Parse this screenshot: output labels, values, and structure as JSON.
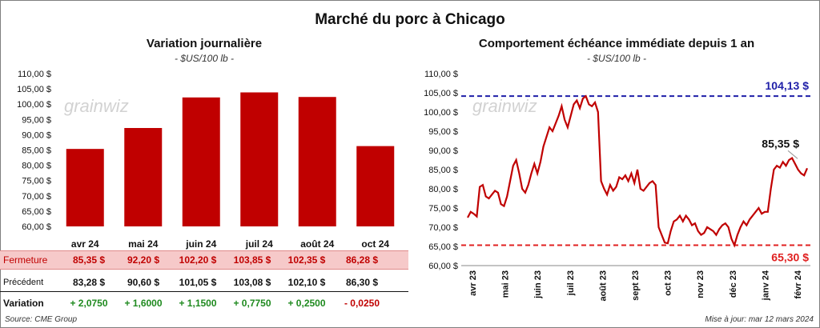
{
  "title": "Marché du porc à Chicago",
  "left_chart": {
    "subtitle": "Variation journalière",
    "unit": "- $US/100 lb -"
  },
  "right_chart": {
    "subtitle": "Comportement échéance immédiate depuis 1 an",
    "unit": "- $US/100 lb -"
  },
  "watermark": "grainwiz",
  "table": {
    "close_label": "Fermeture",
    "prev_label": "Précédent",
    "var_label": "Variation",
    "close": [
      "85,35  $",
      "92,20  $",
      "102,20  $",
      "103,85  $",
      "102,35  $",
      "86,28  $"
    ],
    "prev": [
      "83,28  $",
      "90,60  $",
      "101,05  $",
      "103,08  $",
      "102,10  $",
      "86,30  $"
    ],
    "var": [
      "+ 2,0750",
      "+ 1,6000",
      "+ 1,1500",
      "+ 0,7750",
      "+ 0,2500",
      "- 0,0250"
    ],
    "var_sign": [
      "pos",
      "pos",
      "pos",
      "pos",
      "pos",
      "neg"
    ]
  },
  "footer": {
    "source": "Source: CME Group",
    "updated": "Mise à jour: mar 12 mars 2024"
  },
  "colors": {
    "bar": "#c00000",
    "line": "#c00000",
    "high": "#1f1fa8",
    "low": "#e02020"
  },
  "chart_data": [
    {
      "type": "bar",
      "categories": [
        "avr 24",
        "mai 24",
        "juin 24",
        "juil 24",
        "août 24",
        "oct 24"
      ],
      "values": [
        85.35,
        92.2,
        102.2,
        103.85,
        102.35,
        86.28
      ],
      "ylim": [
        60,
        110
      ],
      "yticks": [
        "60,00 $",
        "65,00 $",
        "70,00 $",
        "75,00 $",
        "80,00 $",
        "85,00 $",
        "90,00 $",
        "95,00 $",
        "100,00 $",
        "105,00 $",
        "110,00 $"
      ]
    },
    {
      "type": "line",
      "ylim": [
        60,
        110
      ],
      "yticks": [
        "60,00 $",
        "65,00 $",
        "70,00 $",
        "75,00 $",
        "80,00 $",
        "85,00 $",
        "90,00 $",
        "95,00 $",
        "100,00 $",
        "105,00 $",
        "110,00 $"
      ],
      "xticks": [
        "avr 23",
        "mai 23",
        "juin 23",
        "juil 23",
        "août 23",
        "sept 23",
        "oct 23",
        "nov 23",
        "déc 23",
        "janv 24",
        "févr 24"
      ],
      "high": {
        "value": 104.13,
        "label": "104,13 $"
      },
      "low": {
        "value": 65.3,
        "label": "65,30 $"
      },
      "last_label": "85,35 $",
      "values": [
        72.5,
        74.0,
        73.5,
        72.8,
        80.5,
        81.0,
        78.0,
        77.5,
        78.5,
        79.5,
        79.0,
        76.0,
        75.5,
        78.0,
        82.0,
        86.0,
        87.5,
        84.0,
        80.0,
        79.0,
        81.0,
        84.0,
        86.5,
        84.0,
        87.0,
        91.0,
        93.5,
        96.0,
        95.0,
        97.0,
        99.0,
        101.5,
        98.0,
        96.0,
        99.0,
        102.0,
        103.0,
        101.0,
        103.5,
        104.13,
        102.0,
        101.5,
        102.5,
        100.0,
        82.0,
        80.0,
        78.5,
        81.0,
        79.5,
        80.5,
        83.0,
        82.5,
        83.5,
        82.0,
        84.0,
        81.5,
        85.0,
        80.0,
        79.5,
        80.5,
        81.5,
        82.0,
        81.0,
        70.0,
        68.0,
        66.0,
        65.8,
        69.0,
        71.5,
        72.0,
        73.0,
        71.5,
        73.0,
        72.0,
        70.5,
        71.0,
        69.0,
        68.0,
        68.5,
        70.0,
        69.5,
        69.0,
        68.0,
        69.5,
        70.5,
        71.0,
        70.0,
        67.0,
        65.3,
        68.0,
        70.0,
        71.5,
        70.5,
        72.0,
        73.0,
        74.0,
        75.0,
        73.5,
        74.0,
        74.0,
        80.0,
        85.0,
        86.0,
        85.5,
        87.0,
        86.0,
        87.5,
        88.0,
        86.5,
        85.0,
        84.0,
        83.5,
        85.35
      ]
    }
  ]
}
